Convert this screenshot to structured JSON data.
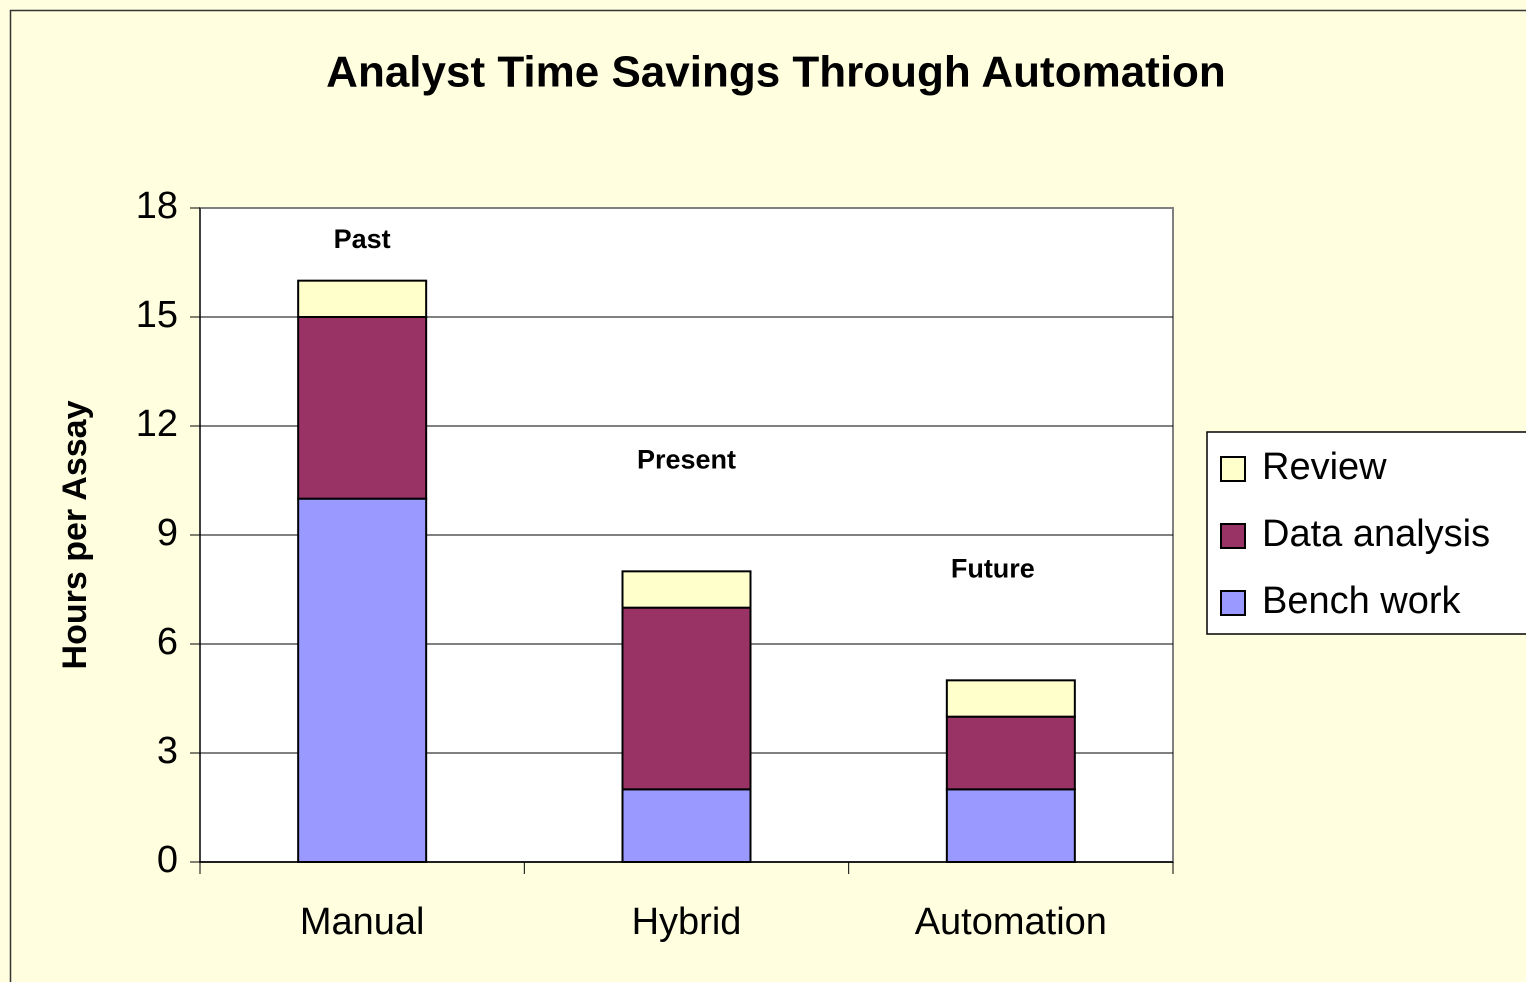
{
  "chart_data": {
    "type": "stacked_bar",
    "title": "Analyst Time Savings Through Automation",
    "y_label": "Hours per Assay",
    "categories": [
      "Manual",
      "Hybrid",
      "Automation"
    ],
    "series": [
      {
        "name": "Bench work",
        "color": "#9999ff",
        "values": [
          10,
          2,
          2
        ]
      },
      {
        "name": "Data analysis",
        "color": "#993366",
        "values": [
          5,
          5,
          2
        ]
      },
      {
        "name": "Review",
        "color": "#ffffcc",
        "values": [
          1,
          1,
          1
        ]
      }
    ],
    "annotations": [
      "Past",
      "Present",
      "Future"
    ],
    "ylim": [
      0,
      18
    ],
    "yticks": [
      0,
      3,
      6,
      9,
      12,
      15,
      18
    ],
    "grid": true,
    "legend": "right"
  }
}
